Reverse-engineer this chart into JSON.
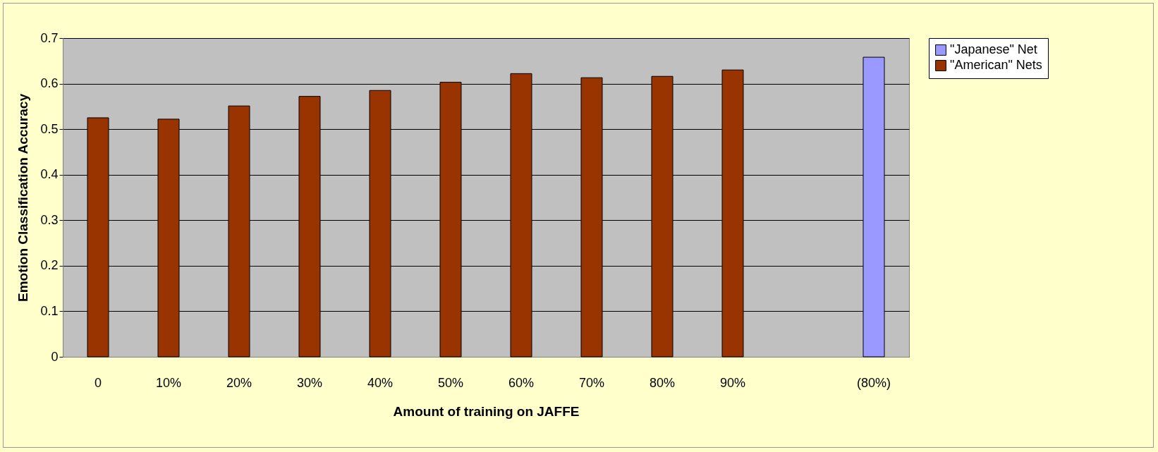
{
  "chart_data": {
    "type": "bar",
    "xlabel": "Amount of training on JAFFE",
    "ylabel": "Emotion Classification Accuracy",
    "categories": [
      "0",
      "10%",
      "20%",
      "30%",
      "40%",
      "50%",
      "60%",
      "70%",
      "80%",
      "90%",
      null,
      "(80%)"
    ],
    "series": [
      {
        "name": "\"Japanese\" Net",
        "color": "#9999ff",
        "values": [
          null,
          null,
          null,
          null,
          null,
          null,
          null,
          null,
          null,
          null,
          null,
          0.658
        ]
      },
      {
        "name": "\"American\" Nets",
        "color": "#993300",
        "values": [
          0.525,
          0.522,
          0.551,
          0.572,
          0.585,
          0.603,
          0.622,
          0.613,
          0.616,
          0.63,
          null,
          null
        ]
      }
    ],
    "ylim": [
      0,
      0.7
    ],
    "yticks": [
      0,
      0.1,
      0.2,
      0.3,
      0.4,
      0.5,
      0.6,
      0.7
    ],
    "grid": "y",
    "legend": "right"
  }
}
